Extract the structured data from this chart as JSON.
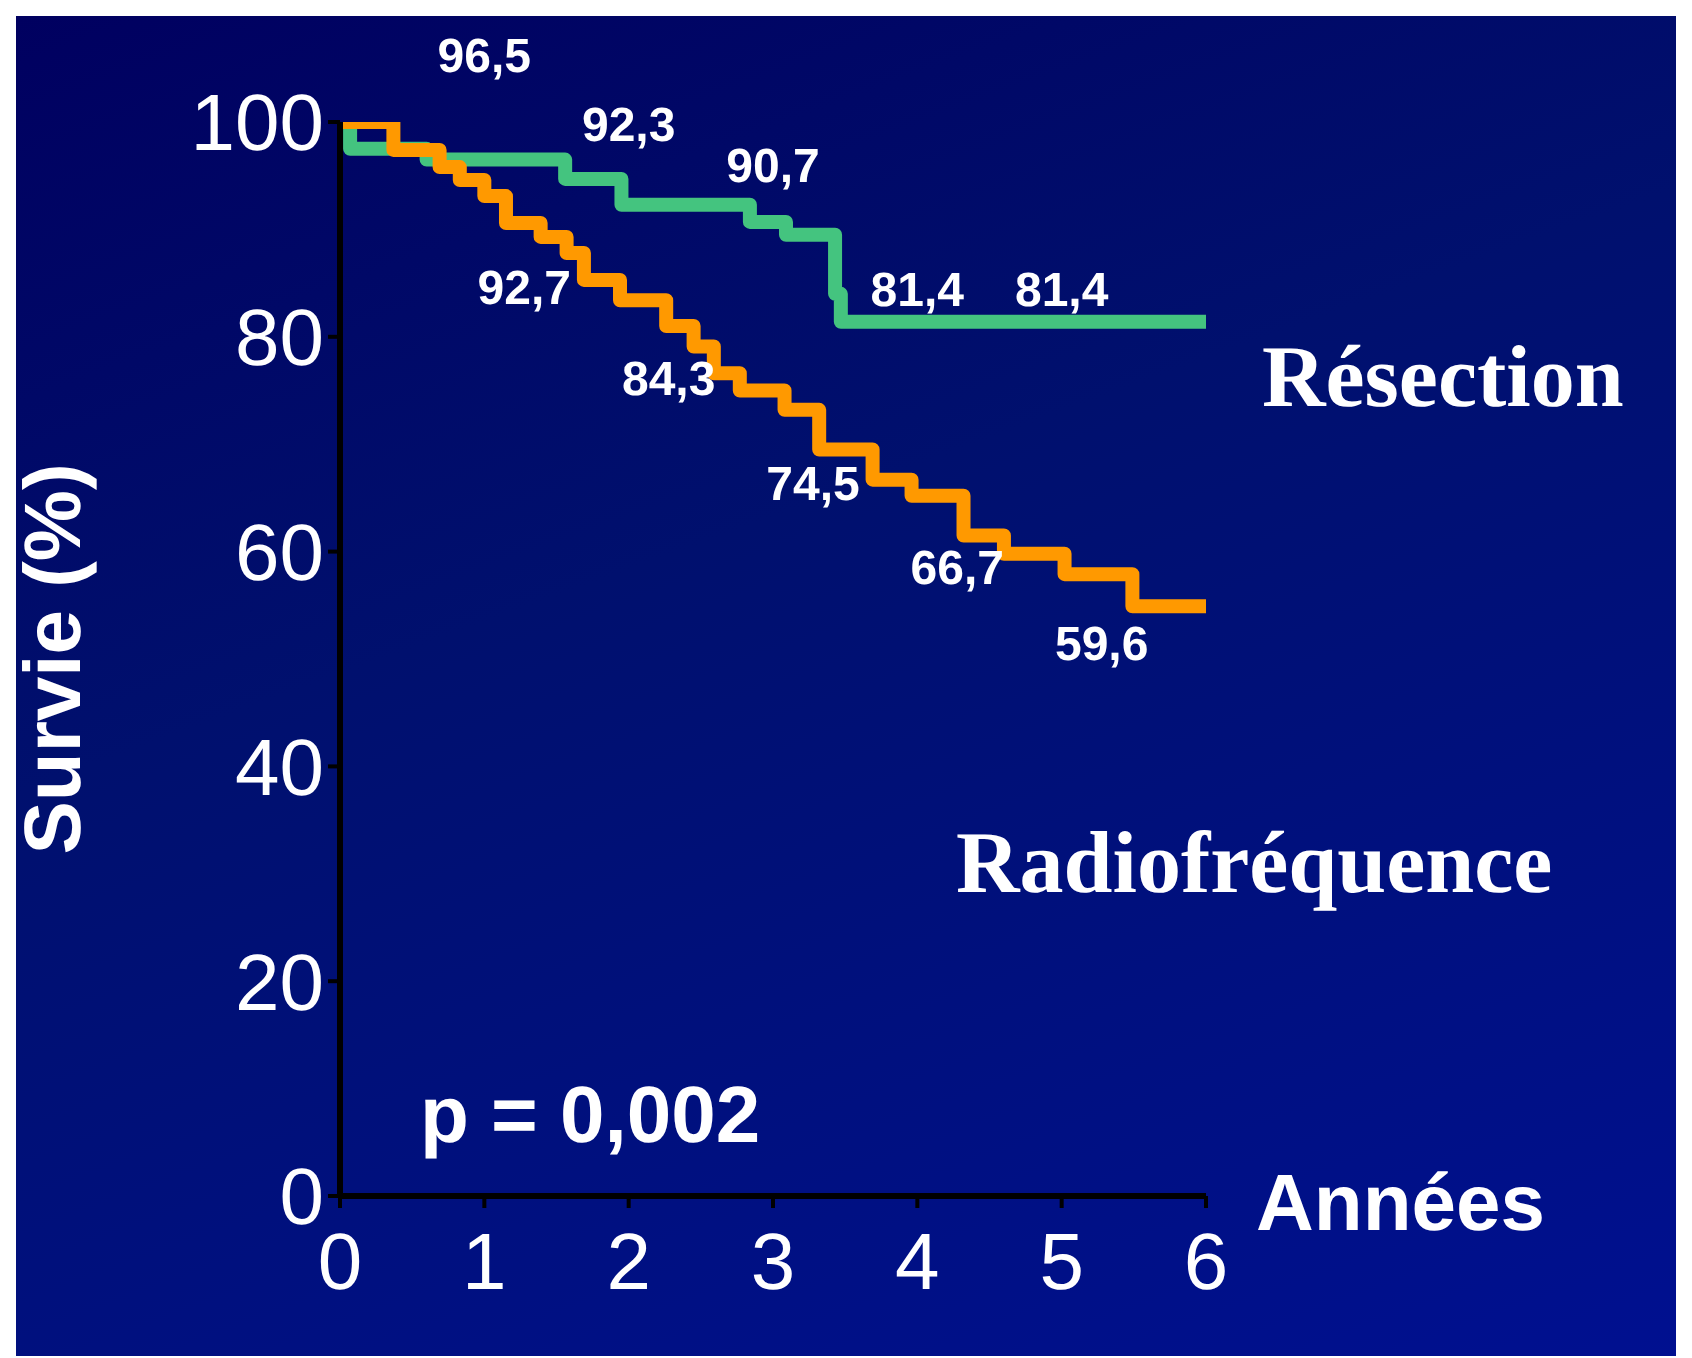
{
  "chart_data": {
    "type": "step",
    "xlabel": "Années",
    "ylabel": "Survie (%)",
    "xlim": [
      0,
      6
    ],
    "xticks": [
      0,
      1,
      2,
      3,
      4,
      5,
      6
    ],
    "ylim": [
      0,
      100
    ],
    "yticks": [
      0,
      20,
      40,
      60,
      80,
      100
    ],
    "grid": false,
    "legend": false,
    "marker": "none",
    "line_style": "solid",
    "series": [
      {
        "name": "Résection",
        "color": "#44c47f",
        "x": [
          0,
          0.07,
          0.6,
          1.56,
          1.95,
          2.84,
          3.09,
          3.43,
          3.47,
          6
        ],
        "values": [
          100,
          97.5,
          96.5,
          94.7,
          92.3,
          90.7,
          89.5,
          84,
          81.4,
          81.4
        ]
      },
      {
        "name": "Radiofréquence",
        "color": "#ff9900",
        "x": [
          0,
          0.37,
          0.69,
          0.83,
          1.0,
          1.15,
          1.39,
          1.57,
          1.69,
          1.94,
          2.26,
          2.45,
          2.59,
          2.77,
          3.08,
          3.32,
          3.69,
          3.96,
          4.32,
          4.6,
          5.02,
          5.49,
          6
        ],
        "values": [
          100,
          97.4,
          95.8,
          94.6,
          93.1,
          90.6,
          89.3,
          87.8,
          85.3,
          83.4,
          81,
          79.1,
          76.6,
          75,
          73.2,
          69.5,
          66.7,
          65.2,
          61.5,
          59.8,
          57.9,
          54.9,
          54.9
        ]
      }
    ],
    "annotations": [
      {
        "text": "96,5",
        "x": 1,
        "y": 96.5
      },
      {
        "text": "92,3",
        "x": 2,
        "y": 92.3
      },
      {
        "text": "90,7",
        "x": 3,
        "y": 90.7
      },
      {
        "text": "81,4",
        "x": 4,
        "y": 81.4
      },
      {
        "text": "81,4",
        "x": 5,
        "y": 81.4
      },
      {
        "text": "92,7",
        "x": 1,
        "y": 92.7
      },
      {
        "text": "84,3",
        "x": 2,
        "y": 84.3
      },
      {
        "text": "74,5",
        "x": 3,
        "y": 74.5
      },
      {
        "text": "66,7",
        "x": 4,
        "y": 66.7
      },
      {
        "text": "59,6",
        "x": 5,
        "y": 59.6
      },
      "p = 0,002"
    ]
  }
}
